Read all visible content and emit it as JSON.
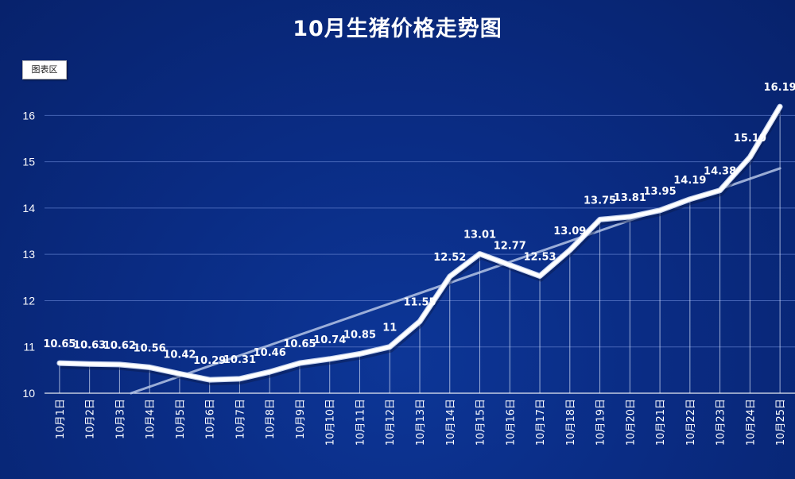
{
  "chart_data": {
    "type": "line",
    "title": "10月生猪价格走势图",
    "categories": [
      "10月1日",
      "10月2日",
      "10月3日",
      "10月4日",
      "10月5日",
      "10月6日",
      "10月7日",
      "10月8日",
      "10月9日",
      "10月10日",
      "10月11日",
      "10月12日",
      "10月13日",
      "10月14日",
      "10月15日",
      "10月16日",
      "10月17日",
      "10月18日",
      "10月19日",
      "10月20日",
      "10月21日",
      "10月22日",
      "10月23日",
      "10月24日",
      "10月25日"
    ],
    "values": [
      10.65,
      10.63,
      10.62,
      10.56,
      10.42,
      10.29,
      10.31,
      10.46,
      10.65,
      10.74,
      10.85,
      11,
      11.55,
      12.52,
      13.01,
      12.77,
      12.53,
      13.09,
      13.75,
      13.81,
      13.95,
      14.19,
      14.38,
      15.1,
      16.19
    ],
    "data_labels": [
      "10.65",
      "10.63",
      "10.62",
      "10.56",
      "10.42",
      "10.29",
      "10.31",
      "10.46",
      "10.65",
      "10.74",
      "10.85",
      "11",
      "11.55",
      "12.52",
      "13.01",
      "12.77",
      "12.53",
      "13.09",
      "13.75",
      "13.81",
      "13.95",
      "14.19",
      "14.38",
      "15.10",
      "16.19"
    ],
    "ylim": [
      10,
      16.4
    ],
    "yticks": [
      "10",
      "11",
      "12",
      "13",
      "14",
      "15",
      "16"
    ],
    "trendline": true,
    "grid": true,
    "xlabel": "",
    "ylabel": "",
    "colors": {
      "line": "#ffffff",
      "grid": "#5a78c8",
      "trend": "#b4c4e6"
    }
  },
  "ui": {
    "chart_area_button": "图表区"
  }
}
